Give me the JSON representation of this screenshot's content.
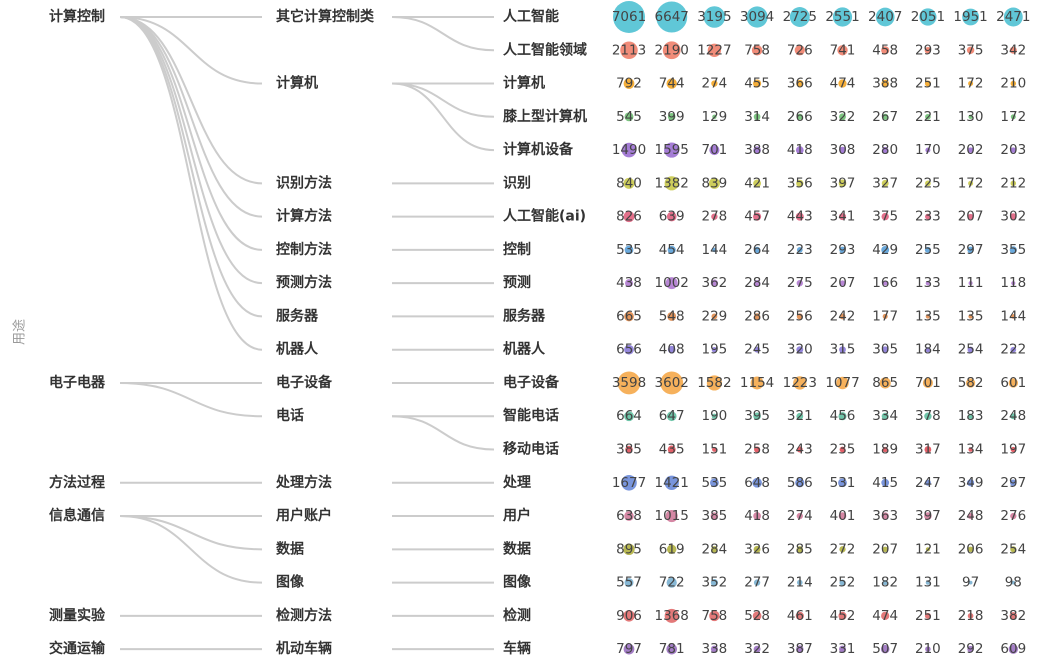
{
  "axis_label": "用途",
  "groups": [
    {
      "label": "计算控制",
      "children": [
        {
          "label": "其它计算控制类",
          "rows": [
            {
              "label": "人工智能",
              "color": "#4fc1d3",
              "values": [
                7061,
                6647,
                3195,
                3094,
                2725,
                2551,
                2407,
                2051,
                1951,
                2471
              ]
            },
            {
              "label": "人工智能领域",
              "color": "#f07f6a",
              "values": [
                2113,
                2190,
                1227,
                758,
                726,
                741,
                458,
                293,
                375,
                342
              ]
            }
          ]
        },
        {
          "label": "计算机",
          "rows": [
            {
              "label": "计算机",
              "color": "#f5a623",
              "values": [
                792,
                744,
                274,
                455,
                366,
                474,
                388,
                251,
                172,
                210
              ]
            },
            {
              "label": "膝上型计算机",
              "color": "#6fbf73",
              "values": [
                545,
                399,
                129,
                314,
                266,
                322,
                267,
                221,
                130,
                172
              ]
            },
            {
              "label": "计算机设备",
              "color": "#9b6fd1",
              "values": [
                1490,
                1595,
                701,
                388,
                418,
                308,
                280,
                170,
                202,
                203
              ]
            }
          ]
        },
        {
          "label": "识别方法",
          "rows": [
            {
              "label": "识别",
              "color": "#c9c94a",
              "values": [
                840,
                1382,
                839,
                421,
                356,
                397,
                327,
                225,
                172,
                212
              ]
            }
          ]
        },
        {
          "label": "计算方法",
          "rows": [
            {
              "label": "人工智能(ai)",
              "color": "#e0607e",
              "values": [
                826,
                639,
                278,
                457,
                443,
                341,
                375,
                233,
                207,
                302
              ]
            }
          ]
        },
        {
          "label": "控制方法",
          "rows": [
            {
              "label": "控制",
              "color": "#5aa0d8",
              "values": [
                535,
                454,
                144,
                264,
                223,
                293,
                429,
                255,
                297,
                355
              ]
            }
          ]
        },
        {
          "label": "预测方法",
          "rows": [
            {
              "label": "预测",
              "color": "#b07ad0",
              "values": [
                438,
                1002,
                362,
                284,
                275,
                207,
                166,
                133,
                111,
                118
              ]
            }
          ]
        },
        {
          "label": "服务器",
          "rows": [
            {
              "label": "服务器",
              "color": "#e08a4a",
              "values": [
                665,
                548,
                229,
                286,
                256,
                242,
                177,
                135,
                135,
                144
              ]
            }
          ]
        },
        {
          "label": "机器人",
          "rows": [
            {
              "label": "机器人",
              "color": "#8a7ad8",
              "values": [
                656,
                408,
                195,
                245,
                320,
                315,
                305,
                184,
                254,
                222
              ]
            }
          ]
        }
      ]
    },
    {
      "label": "电子电器",
      "children": [
        {
          "label": "电子设备",
          "rows": [
            {
              "label": "电子设备",
              "color": "#f5a84a",
              "values": [
                3598,
                3602,
                1582,
                1154,
                1223,
                1077,
                865,
                701,
                582,
                601
              ]
            }
          ]
        },
        {
          "label": "电话",
          "rows": [
            {
              "label": "智能电话",
              "color": "#5fbfa0",
              "values": [
                664,
                647,
                190,
                395,
                321,
                456,
                334,
                378,
                183,
                248
              ]
            },
            {
              "label": "移动电话",
              "color": "#e0505a",
              "values": [
                385,
                435,
                151,
                258,
                243,
                235,
                189,
                317,
                134,
                197
              ]
            }
          ]
        }
      ]
    },
    {
      "label": "方法过程",
      "children": [
        {
          "label": "处理方法",
          "rows": [
            {
              "label": "处理",
              "color": "#6a8ad8",
              "values": [
                1677,
                1421,
                535,
                648,
                586,
                531,
                415,
                247,
                349,
                297
              ]
            }
          ]
        }
      ]
    },
    {
      "label": "信息通信",
      "children": [
        {
          "label": "用户账户",
          "rows": [
            {
              "label": "用户",
              "color": "#d07a9a",
              "values": [
                638,
                1015,
                385,
                418,
                274,
                401,
                363,
                397,
                248,
                276
              ]
            }
          ]
        },
        {
          "label": "数据",
          "rows": [
            {
              "label": "数据",
              "color": "#b0b040",
              "values": [
                895,
                619,
                284,
                326,
                285,
                272,
                207,
                121,
                206,
                254
              ]
            }
          ]
        },
        {
          "label": "图像",
          "rows": [
            {
              "label": "图像",
              "color": "#7ab0d0",
              "values": [
                557,
                722,
                352,
                277,
                214,
                252,
                182,
                131,
                97,
                98
              ]
            }
          ]
        }
      ]
    },
    {
      "label": "测量实验",
      "children": [
        {
          "label": "检测方法",
          "rows": [
            {
              "label": "检测",
              "color": "#e06a6a",
              "values": [
                906,
                1368,
                758,
                528,
                461,
                452,
                474,
                251,
                218,
                382
              ]
            }
          ]
        }
      ]
    },
    {
      "label": "交通运输",
      "children": [
        {
          "label": "机动车辆",
          "rows": [
            {
              "label": "车辆",
              "color": "#9a70c0",
              "values": [
                797,
                781,
                338,
                322,
                387,
                331,
                507,
                210,
                292,
                609
              ]
            }
          ]
        }
      ]
    }
  ]
}
